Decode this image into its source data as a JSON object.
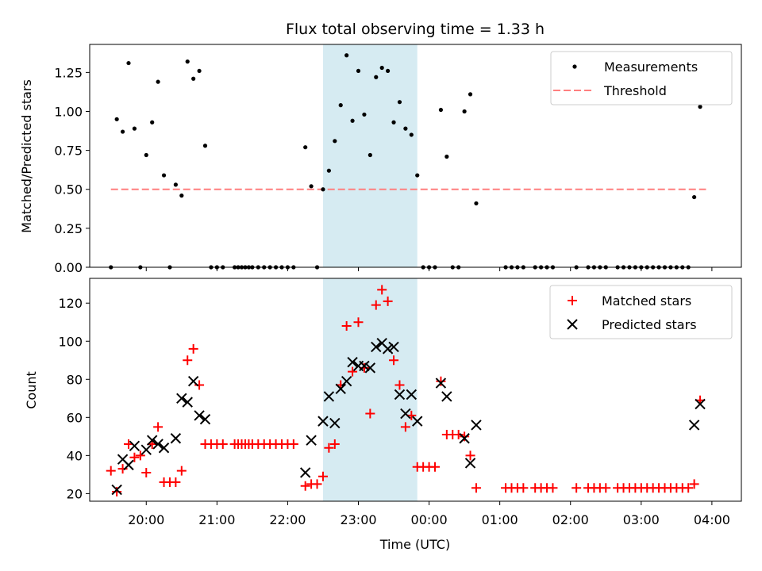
{
  "title": "Flux total observing time = 1.33 h",
  "xlabel": "Time (UTC)",
  "x_tick_labels": [
    "20:00",
    "21:00",
    "22:00",
    "23:00",
    "00:00",
    "01:00",
    "02:00",
    "03:00",
    "04:00"
  ],
  "colors": {
    "measurements": "#000000",
    "threshold": "#ff7f7f",
    "matched": "#ff0000",
    "predicted": "#000000",
    "shade": "#add8e6"
  },
  "chart_data": [
    {
      "type": "scatter",
      "ylabel": "Matched/Predicted stars",
      "ylim": [
        0,
        1.43
      ],
      "yticks": [
        "0.00",
        "0.25",
        "0.50",
        "0.75",
        "1.00",
        "1.25"
      ],
      "xlim": [
        "19:12",
        "04:25"
      ],
      "shaded_span": [
        "22:30",
        "23:50"
      ],
      "legend_position": "upper right",
      "legend": [
        "Measurements",
        "Threshold"
      ],
      "threshold": 0.5,
      "threshold_range": [
        "19:30",
        "03:55"
      ],
      "series": [
        {
          "name": "Measurements",
          "marker": "dot",
          "points": [
            [
              "19:30",
              0.0
            ],
            [
              "19:35",
              0.95
            ],
            [
              "19:40",
              0.87
            ],
            [
              "19:45",
              1.31
            ],
            [
              "19:50",
              0.89
            ],
            [
              "19:55",
              0.0
            ],
            [
              "20:00",
              0.72
            ],
            [
              "20:05",
              0.93
            ],
            [
              "20:10",
              1.19
            ],
            [
              "20:15",
              0.59
            ],
            [
              "20:20",
              0.0
            ],
            [
              "20:25",
              0.53
            ],
            [
              "20:30",
              0.46
            ],
            [
              "20:35",
              1.32
            ],
            [
              "20:40",
              1.21
            ],
            [
              "20:45",
              1.26
            ],
            [
              "20:50",
              0.78
            ],
            [
              "20:55",
              0.0
            ],
            [
              "21:00",
              0.0
            ],
            [
              "21:05",
              0.0
            ],
            [
              "21:15",
              0.0
            ],
            [
              "21:18",
              0.0
            ],
            [
              "21:21",
              0.0
            ],
            [
              "21:24",
              0.0
            ],
            [
              "21:27",
              0.0
            ],
            [
              "21:30",
              0.0
            ],
            [
              "21:35",
              0.0
            ],
            [
              "21:40",
              0.0
            ],
            [
              "21:45",
              0.0
            ],
            [
              "21:50",
              0.0
            ],
            [
              "21:55",
              0.0
            ],
            [
              "22:00",
              0.0
            ],
            [
              "22:05",
              0.0
            ],
            [
              "22:15",
              0.77
            ],
            [
              "22:20",
              0.52
            ],
            [
              "22:25",
              0.0
            ],
            [
              "22:30",
              0.5
            ],
            [
              "22:35",
              0.62
            ],
            [
              "22:40",
              0.81
            ],
            [
              "22:45",
              1.04
            ],
            [
              "22:50",
              1.36
            ],
            [
              "22:55",
              0.94
            ],
            [
              "23:00",
              1.26
            ],
            [
              "23:05",
              0.98
            ],
            [
              "23:10",
              0.72
            ],
            [
              "23:15",
              1.22
            ],
            [
              "23:20",
              1.28
            ],
            [
              "23:25",
              1.26
            ],
            [
              "23:30",
              0.93
            ],
            [
              "23:35",
              1.06
            ],
            [
              "23:40",
              0.89
            ],
            [
              "23:45",
              0.85
            ],
            [
              "23:50",
              0.59
            ],
            [
              "23:55",
              0.0
            ],
            [
              "00:00",
              0.0
            ],
            [
              "00:05",
              0.0
            ],
            [
              "00:10",
              1.01
            ],
            [
              "00:15",
              0.71
            ],
            [
              "00:20",
              0.0
            ],
            [
              "00:25",
              0.0
            ],
            [
              "00:30",
              1.0
            ],
            [
              "00:35",
              1.11
            ],
            [
              "00:40",
              0.41
            ],
            [
              "01:05",
              0.0
            ],
            [
              "01:10",
              0.0
            ],
            [
              "01:15",
              0.0
            ],
            [
              "01:20",
              0.0
            ],
            [
              "01:30",
              0.0
            ],
            [
              "01:35",
              0.0
            ],
            [
              "01:40",
              0.0
            ],
            [
              "01:45",
              0.0
            ],
            [
              "02:05",
              0.0
            ],
            [
              "02:15",
              0.0
            ],
            [
              "02:20",
              0.0
            ],
            [
              "02:25",
              0.0
            ],
            [
              "02:30",
              0.0
            ],
            [
              "02:40",
              0.0
            ],
            [
              "02:45",
              0.0
            ],
            [
              "02:50",
              0.0
            ],
            [
              "02:55",
              0.0
            ],
            [
              "03:00",
              0.0
            ],
            [
              "03:05",
              0.0
            ],
            [
              "03:10",
              0.0
            ],
            [
              "03:15",
              0.0
            ],
            [
              "03:20",
              0.0
            ],
            [
              "03:25",
              0.0
            ],
            [
              "03:30",
              0.0
            ],
            [
              "03:35",
              0.0
            ],
            [
              "03:40",
              0.0
            ],
            [
              "03:45",
              0.45
            ],
            [
              "03:50",
              1.03
            ]
          ]
        }
      ]
    },
    {
      "type": "scatter",
      "ylabel": "Count",
      "ylim": [
        16,
        133
      ],
      "yticks": [
        "20",
        "40",
        "60",
        "80",
        "100",
        "120"
      ],
      "xlim": [
        "19:12",
        "04:25"
      ],
      "shaded_span": [
        "22:30",
        "23:50"
      ],
      "legend_position": "upper right",
      "legend": [
        "Matched stars",
        "Predicted stars"
      ],
      "series": [
        {
          "name": "Matched stars",
          "marker": "plus",
          "points": [
            [
              "19:30",
              32
            ],
            [
              "19:35",
              21
            ],
            [
              "19:40",
              33
            ],
            [
              "19:45",
              46
            ],
            [
              "19:50",
              39
            ],
            [
              "19:55",
              40
            ],
            [
              "20:00",
              31
            ],
            [
              "20:05",
              46
            ],
            [
              "20:10",
              55
            ],
            [
              "20:15",
              26
            ],
            [
              "20:20",
              26
            ],
            [
              "20:25",
              26
            ],
            [
              "20:30",
              32
            ],
            [
              "20:35",
              90
            ],
            [
              "20:40",
              96
            ],
            [
              "20:45",
              77
            ],
            [
              "20:50",
              46
            ],
            [
              "20:55",
              46
            ],
            [
              "21:00",
              46
            ],
            [
              "21:05",
              46
            ],
            [
              "21:15",
              46
            ],
            [
              "21:18",
              46
            ],
            [
              "21:21",
              46
            ],
            [
              "21:24",
              46
            ],
            [
              "21:27",
              46
            ],
            [
              "21:30",
              46
            ],
            [
              "21:35",
              46
            ],
            [
              "21:40",
              46
            ],
            [
              "21:45",
              46
            ],
            [
              "21:50",
              46
            ],
            [
              "21:55",
              46
            ],
            [
              "22:00",
              46
            ],
            [
              "22:05",
              46
            ],
            [
              "22:15",
              24
            ],
            [
              "22:20",
              25
            ],
            [
              "22:25",
              25
            ],
            [
              "22:30",
              29
            ],
            [
              "22:35",
              44
            ],
            [
              "22:40",
              46
            ],
            [
              "22:45",
              77
            ],
            [
              "22:50",
              108
            ],
            [
              "22:55",
              84
            ],
            [
              "23:00",
              110
            ],
            [
              "23:05",
              86
            ],
            [
              "23:10",
              62
            ],
            [
              "23:15",
              119
            ],
            [
              "23:20",
              127
            ],
            [
              "23:25",
              121
            ],
            [
              "23:30",
              90
            ],
            [
              "23:35",
              77
            ],
            [
              "23:40",
              55
            ],
            [
              "23:45",
              61
            ],
            [
              "23:50",
              34
            ],
            [
              "23:55",
              34
            ],
            [
              "00:00",
              34
            ],
            [
              "00:05",
              34
            ],
            [
              "00:10",
              79
            ],
            [
              "00:15",
              51
            ],
            [
              "00:20",
              51
            ],
            [
              "00:25",
              51
            ],
            [
              "00:30",
              50
            ],
            [
              "00:35",
              40
            ],
            [
              "00:40",
              23
            ],
            [
              "01:05",
              23
            ],
            [
              "01:10",
              23
            ],
            [
              "01:15",
              23
            ],
            [
              "01:20",
              23
            ],
            [
              "01:30",
              23
            ],
            [
              "01:35",
              23
            ],
            [
              "01:40",
              23
            ],
            [
              "01:45",
              23
            ],
            [
              "02:05",
              23
            ],
            [
              "02:15",
              23
            ],
            [
              "02:20",
              23
            ],
            [
              "02:25",
              23
            ],
            [
              "02:30",
              23
            ],
            [
              "02:40",
              23
            ],
            [
              "02:45",
              23
            ],
            [
              "02:50",
              23
            ],
            [
              "02:55",
              23
            ],
            [
              "03:00",
              23
            ],
            [
              "03:05",
              23
            ],
            [
              "03:10",
              23
            ],
            [
              "03:15",
              23
            ],
            [
              "03:20",
              23
            ],
            [
              "03:25",
              23
            ],
            [
              "03:30",
              23
            ],
            [
              "03:35",
              23
            ],
            [
              "03:40",
              23
            ],
            [
              "03:45",
              25
            ],
            [
              "03:50",
              69
            ]
          ]
        },
        {
          "name": "Predicted stars",
          "marker": "x",
          "points": [
            [
              "19:35",
              22
            ],
            [
              "19:40",
              38
            ],
            [
              "19:45",
              35
            ],
            [
              "19:50",
              45
            ],
            [
              "20:00",
              43
            ],
            [
              "20:05",
              48
            ],
            [
              "20:10",
              46
            ],
            [
              "20:15",
              44
            ],
            [
              "20:25",
              49
            ],
            [
              "20:30",
              70
            ],
            [
              "20:35",
              68
            ],
            [
              "20:40",
              79
            ],
            [
              "20:45",
              61
            ],
            [
              "20:50",
              59
            ],
            [
              "22:15",
              31
            ],
            [
              "22:20",
              48
            ],
            [
              "22:30",
              58
            ],
            [
              "22:35",
              71
            ],
            [
              "22:40",
              57
            ],
            [
              "22:45",
              75
            ],
            [
              "22:50",
              79
            ],
            [
              "22:55",
              89
            ],
            [
              "23:00",
              87
            ],
            [
              "23:05",
              87
            ],
            [
              "23:10",
              86
            ],
            [
              "23:15",
              97
            ],
            [
              "23:20",
              99
            ],
            [
              "23:25",
              96
            ],
            [
              "23:30",
              97
            ],
            [
              "23:35",
              72
            ],
            [
              "23:40",
              62
            ],
            [
              "23:45",
              72
            ],
            [
              "23:50",
              58
            ],
            [
              "00:10",
              78
            ],
            [
              "00:15",
              71
            ],
            [
              "00:30",
              49
            ],
            [
              "00:35",
              36
            ],
            [
              "00:40",
              56
            ],
            [
              "03:45",
              56
            ],
            [
              "03:50",
              67
            ]
          ]
        }
      ]
    }
  ]
}
